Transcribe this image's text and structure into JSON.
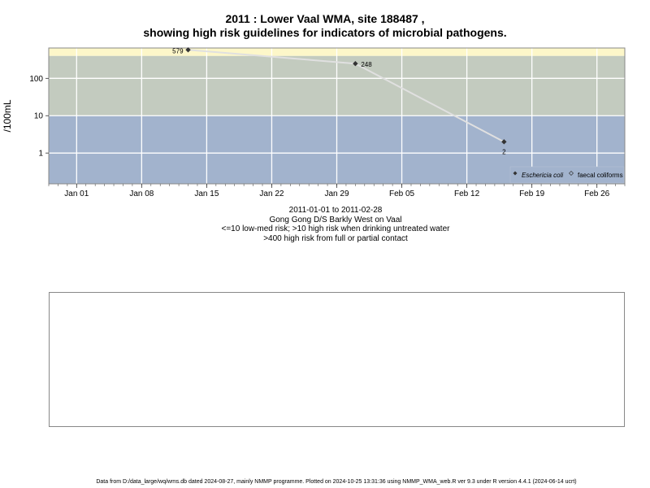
{
  "title_line1": "2011 : Lower Vaal WMA, site 188487 ,",
  "title_line2": "showing high risk guidelines for indicators of microbial pathogens.",
  "subtitle": {
    "date_range": "2011-01-01 to 2011-02-28",
    "site_name": "Gong Gong D/S Barkly West on Vaal",
    "guideline_1": "<=10 low-med risk; >10 high risk when drinking untreated water",
    "guideline_2": ">400 high risk from full or partial contact"
  },
  "footer": "Data from D:/data_large/wq/wms.db dated 2024-08-27, mainly NMMP programme. Plotted on 2024-10-25 13:31:36 using NMMP_WMA_web.R ver 9.3 under R version 4.4.1 (2024-06-14 ucrt)",
  "colors": {
    "band_low": "#a2b3cd",
    "band_mid": "#c3cbbf",
    "band_high": "#fdf7c9",
    "grid": "#ffffff",
    "series_line": "#e0e0e0",
    "marker": "#333333"
  },
  "chart_data": {
    "type": "line",
    "title": "2011 : Lower Vaal WMA, site 188487 ,",
    "xlabel": "",
    "ylabel": "/100mL",
    "y_scale": "log",
    "ylim": [
      0.15,
      650
    ],
    "xlim": [
      "2010-12-29",
      "2011-03-01"
    ],
    "x_tick_labels": [
      "Jan 01",
      "Jan 08",
      "Jan 15",
      "Jan 22",
      "Jan 29",
      "Feb 05",
      "Feb 12",
      "Feb 19",
      "Feb 26"
    ],
    "x_ticks": [
      "2011-01-01",
      "2011-01-08",
      "2011-01-15",
      "2011-01-22",
      "2011-01-29",
      "2011-02-05",
      "2011-02-12",
      "2011-02-19",
      "2011-02-26"
    ],
    "y_ticks": [
      1,
      10,
      100
    ],
    "y_tick_labels": [
      "1",
      "10",
      "100"
    ],
    "bands": [
      {
        "from": 0.15,
        "to": 10,
        "color": "#a2b3cd"
      },
      {
        "from": 10,
        "to": 400,
        "color": "#c3cbbf"
      },
      {
        "from": 400,
        "to": 650,
        "color": "#fdf7c9"
      }
    ],
    "grid": true,
    "legend_position": "bottom-right",
    "series": [
      {
        "name": "Eschericia coli",
        "x": [
          "2011-01-13",
          "2011-01-31",
          "2011-02-16"
        ],
        "values": [
          579,
          248,
          2
        ],
        "point_labels": [
          "579",
          "248",
          "2"
        ]
      },
      {
        "name": "faecal coliforms",
        "x": [],
        "values": []
      }
    ]
  }
}
